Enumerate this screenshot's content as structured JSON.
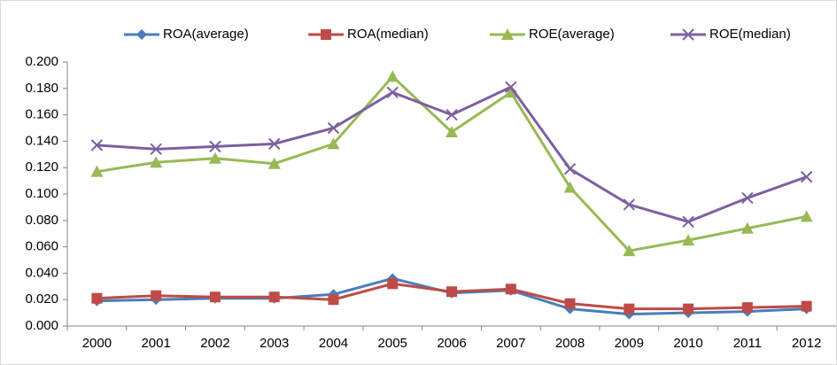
{
  "chart_data": {
    "type": "line",
    "categories": [
      "2000",
      "2001",
      "2002",
      "2003",
      "2004",
      "2005",
      "2006",
      "2007",
      "2008",
      "2009",
      "2010",
      "2011",
      "2012"
    ],
    "series": [
      {
        "name": "ROA(average)",
        "color": "#4a7ebb",
        "marker": "diamond",
        "values": [
          0.019,
          0.02,
          0.021,
          0.021,
          0.024,
          0.036,
          0.025,
          0.027,
          0.013,
          0.009,
          0.01,
          0.011,
          0.013
        ]
      },
      {
        "name": "ROA(median)",
        "color": "#be4b48",
        "marker": "square",
        "values": [
          0.021,
          0.023,
          0.022,
          0.022,
          0.02,
          0.032,
          0.026,
          0.028,
          0.017,
          0.013,
          0.013,
          0.014,
          0.015
        ]
      },
      {
        "name": "ROE(average)",
        "color": "#98b954",
        "marker": "triangle",
        "values": [
          0.117,
          0.124,
          0.127,
          0.123,
          0.138,
          0.189,
          0.147,
          0.177,
          0.105,
          0.057,
          0.065,
          0.074,
          0.083
        ]
      },
      {
        "name": "ROE(median)",
        "color": "#7d60a0",
        "marker": "x",
        "values": [
          0.137,
          0.134,
          0.136,
          0.138,
          0.15,
          0.177,
          0.16,
          0.181,
          0.119,
          0.092,
          0.079,
          0.097,
          0.113
        ]
      }
    ],
    "ylim": [
      0,
      0.2
    ],
    "yticks": [
      {
        "value": 0,
        "label": "0.000"
      },
      {
        "value": 0.02,
        "label": "0.020"
      },
      {
        "value": 0.04,
        "label": "0.040"
      },
      {
        "value": 0.06,
        "label": "0.060"
      },
      {
        "value": 0.08,
        "label": "0.080"
      },
      {
        "value": 0.1,
        "label": "0.100"
      },
      {
        "value": 0.12,
        "label": "0.120"
      },
      {
        "value": 0.14,
        "label": "0.140"
      },
      {
        "value": 0.16,
        "label": "0.160"
      },
      {
        "value": 0.18,
        "label": "0.180"
      },
      {
        "value": 0.2,
        "label": "0.200"
      }
    ],
    "grid": false,
    "legend": "top"
  }
}
